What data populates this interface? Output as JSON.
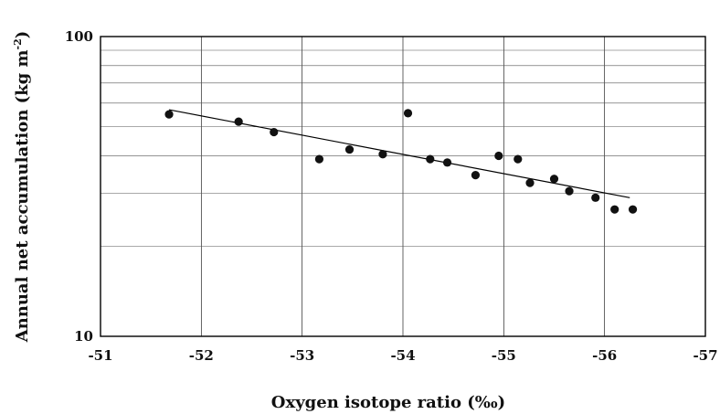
{
  "chart_data": {
    "type": "scatter",
    "xlabel": "Oxygen isotope ratio (‰)",
    "ylabel_main": "Annual net accumulation (kg m",
    "ylabel_sup": "-2",
    "ylabel_close": ")",
    "x_ticks": [
      "-51",
      "-52",
      "-53",
      "-54",
      "-55",
      "-56",
      "-57"
    ],
    "x_tick_values": [
      -51,
      -52,
      -53,
      -54,
      -55,
      -56,
      -57
    ],
    "y_ticks": [
      "10",
      "100"
    ],
    "y_tick_values": [
      10,
      100
    ],
    "xlim": [
      -51,
      -57
    ],
    "ylim": [
      10,
      100
    ],
    "y_scale": "log",
    "grid": true,
    "series": [
      {
        "points": [
          {
            "x": -51.68,
            "y": 55
          },
          {
            "x": -52.37,
            "y": 52
          },
          {
            "x": -52.72,
            "y": 48
          },
          {
            "x": -53.17,
            "y": 39
          },
          {
            "x": -53.47,
            "y": 42
          },
          {
            "x": -53.8,
            "y": 40.5
          },
          {
            "x": -54.05,
            "y": 55.5
          },
          {
            "x": -54.27,
            "y": 39
          },
          {
            "x": -54.44,
            "y": 38
          },
          {
            "x": -54.72,
            "y": 34.5
          },
          {
            "x": -54.95,
            "y": 40
          },
          {
            "x": -55.14,
            "y": 39
          },
          {
            "x": -55.26,
            "y": 32.5
          },
          {
            "x": -55.5,
            "y": 33.5
          },
          {
            "x": -55.65,
            "y": 30.5
          },
          {
            "x": -55.91,
            "y": 29
          },
          {
            "x": -56.1,
            "y": 26.5
          },
          {
            "x": -56.28,
            "y": 26.5
          }
        ]
      }
    ],
    "trendline": {
      "x": [
        -51.68,
        -56.25
      ],
      "y": [
        57,
        29
      ]
    }
  }
}
